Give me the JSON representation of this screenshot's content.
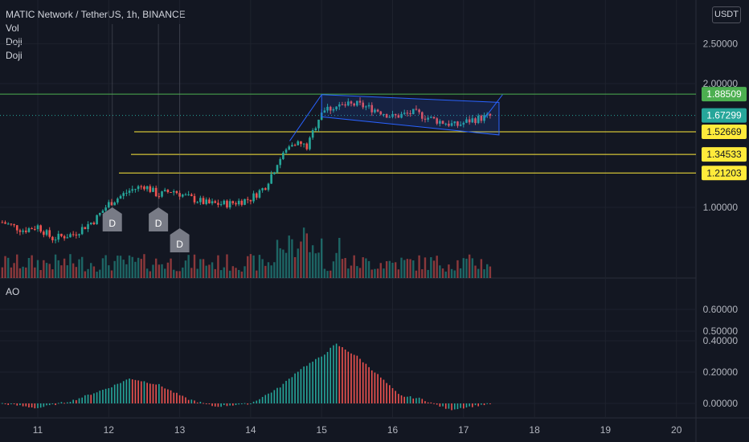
{
  "header": {
    "title": "MATIC Network / TetherUS, 1h, BINANCE",
    "indicators": [
      "Vol",
      "Doji",
      "Doji"
    ],
    "currency": "USDT"
  },
  "ao_pane": {
    "label": "AO"
  },
  "colors": {
    "background": "#131722",
    "up": "#26a69a",
    "down": "#ef5350",
    "ao_up": "#26a69a",
    "ao_down": "#ef5350",
    "level_line": "#ffeb3b",
    "resistance_line": "#4caf50",
    "channel": "#2962ff",
    "grid": "#1e222d",
    "text": "#b2b5be"
  },
  "chart_data": [
    {
      "type": "candlestick",
      "title": "MATIC Network / TetherUS, 1h, BINANCE",
      "y_scale": "log",
      "y_ticks": [
        "2.50000",
        "2.00000",
        "1.00000",
        "0.50000"
      ],
      "x_ticks": [
        "11",
        "12",
        "13",
        "14",
        "15",
        "16",
        "17",
        "18",
        "19",
        "20"
      ],
      "price_labels": [
        {
          "value": "1.88509",
          "color": "#4caf50"
        },
        {
          "value": "1.67299",
          "color": "#26a69a"
        },
        {
          "value": "1.52669",
          "color": "#ffeb3b"
        },
        {
          "value": "1.34533",
          "color": "#ffeb3b"
        },
        {
          "value": "1.21203",
          "color": "#ffeb3b"
        }
      ],
      "horizontal_levels": [
        1.88509,
        1.52669,
        1.34533,
        1.21203
      ],
      "last_price": 1.67299,
      "doji_markers": [
        {
          "day": 12.05,
          "label": "D"
        },
        {
          "day": 12.7,
          "label": "D"
        },
        {
          "day": 13.0,
          "label": "D"
        }
      ],
      "channel": {
        "start_day": 15.0,
        "end_day": 17.5,
        "top_start": 1.88,
        "top_end": 1.8,
        "bottom_start": 1.66,
        "bottom_end": 1.5
      },
      "price_path": [
        [
          10.5,
          0.92
        ],
        [
          10.8,
          0.88
        ],
        [
          11.0,
          0.9
        ],
        [
          11.2,
          0.84
        ],
        [
          11.5,
          0.86
        ],
        [
          11.8,
          0.93
        ],
        [
          12.0,
          1.02
        ],
        [
          12.3,
          1.1
        ],
        [
          12.5,
          1.13
        ],
        [
          12.7,
          1.07
        ],
        [
          12.9,
          1.1
        ],
        [
          13.1,
          1.06
        ],
        [
          13.4,
          1.02
        ],
        [
          13.7,
          1.02
        ],
        [
          14.0,
          1.05
        ],
        [
          14.2,
          1.12
        ],
        [
          14.4,
          1.3
        ],
        [
          14.6,
          1.45
        ],
        [
          14.8,
          1.4
        ],
        [
          15.0,
          1.72
        ],
        [
          15.2,
          1.76
        ],
        [
          15.5,
          1.78
        ],
        [
          15.8,
          1.72
        ],
        [
          16.0,
          1.66
        ],
        [
          16.3,
          1.7
        ],
        [
          16.6,
          1.63
        ],
        [
          16.9,
          1.58
        ],
        [
          17.1,
          1.63
        ],
        [
          17.4,
          1.67
        ]
      ]
    },
    {
      "type": "bar",
      "title": "AO",
      "y_ticks": [
        "0.60000",
        "0.40000",
        "0.20000",
        "0.00000"
      ],
      "ylim": [
        -0.05,
        0.65
      ],
      "x_range_days": [
        10.5,
        17.4
      ],
      "profile": [
        [
          10.5,
          0.0
        ],
        [
          11.0,
          -0.03
        ],
        [
          11.5,
          0.02
        ],
        [
          12.0,
          0.1
        ],
        [
          12.3,
          0.16
        ],
        [
          12.7,
          0.12
        ],
        [
          13.1,
          0.03
        ],
        [
          13.5,
          -0.02
        ],
        [
          14.0,
          0.0
        ],
        [
          14.4,
          0.1
        ],
        [
          14.7,
          0.22
        ],
        [
          15.0,
          0.3
        ],
        [
          15.2,
          0.38
        ],
        [
          15.5,
          0.3
        ],
        [
          15.8,
          0.18
        ],
        [
          16.1,
          0.05
        ],
        [
          16.4,
          0.03
        ],
        [
          16.8,
          -0.04
        ],
        [
          17.1,
          -0.02
        ],
        [
          17.4,
          0.0
        ]
      ]
    }
  ]
}
